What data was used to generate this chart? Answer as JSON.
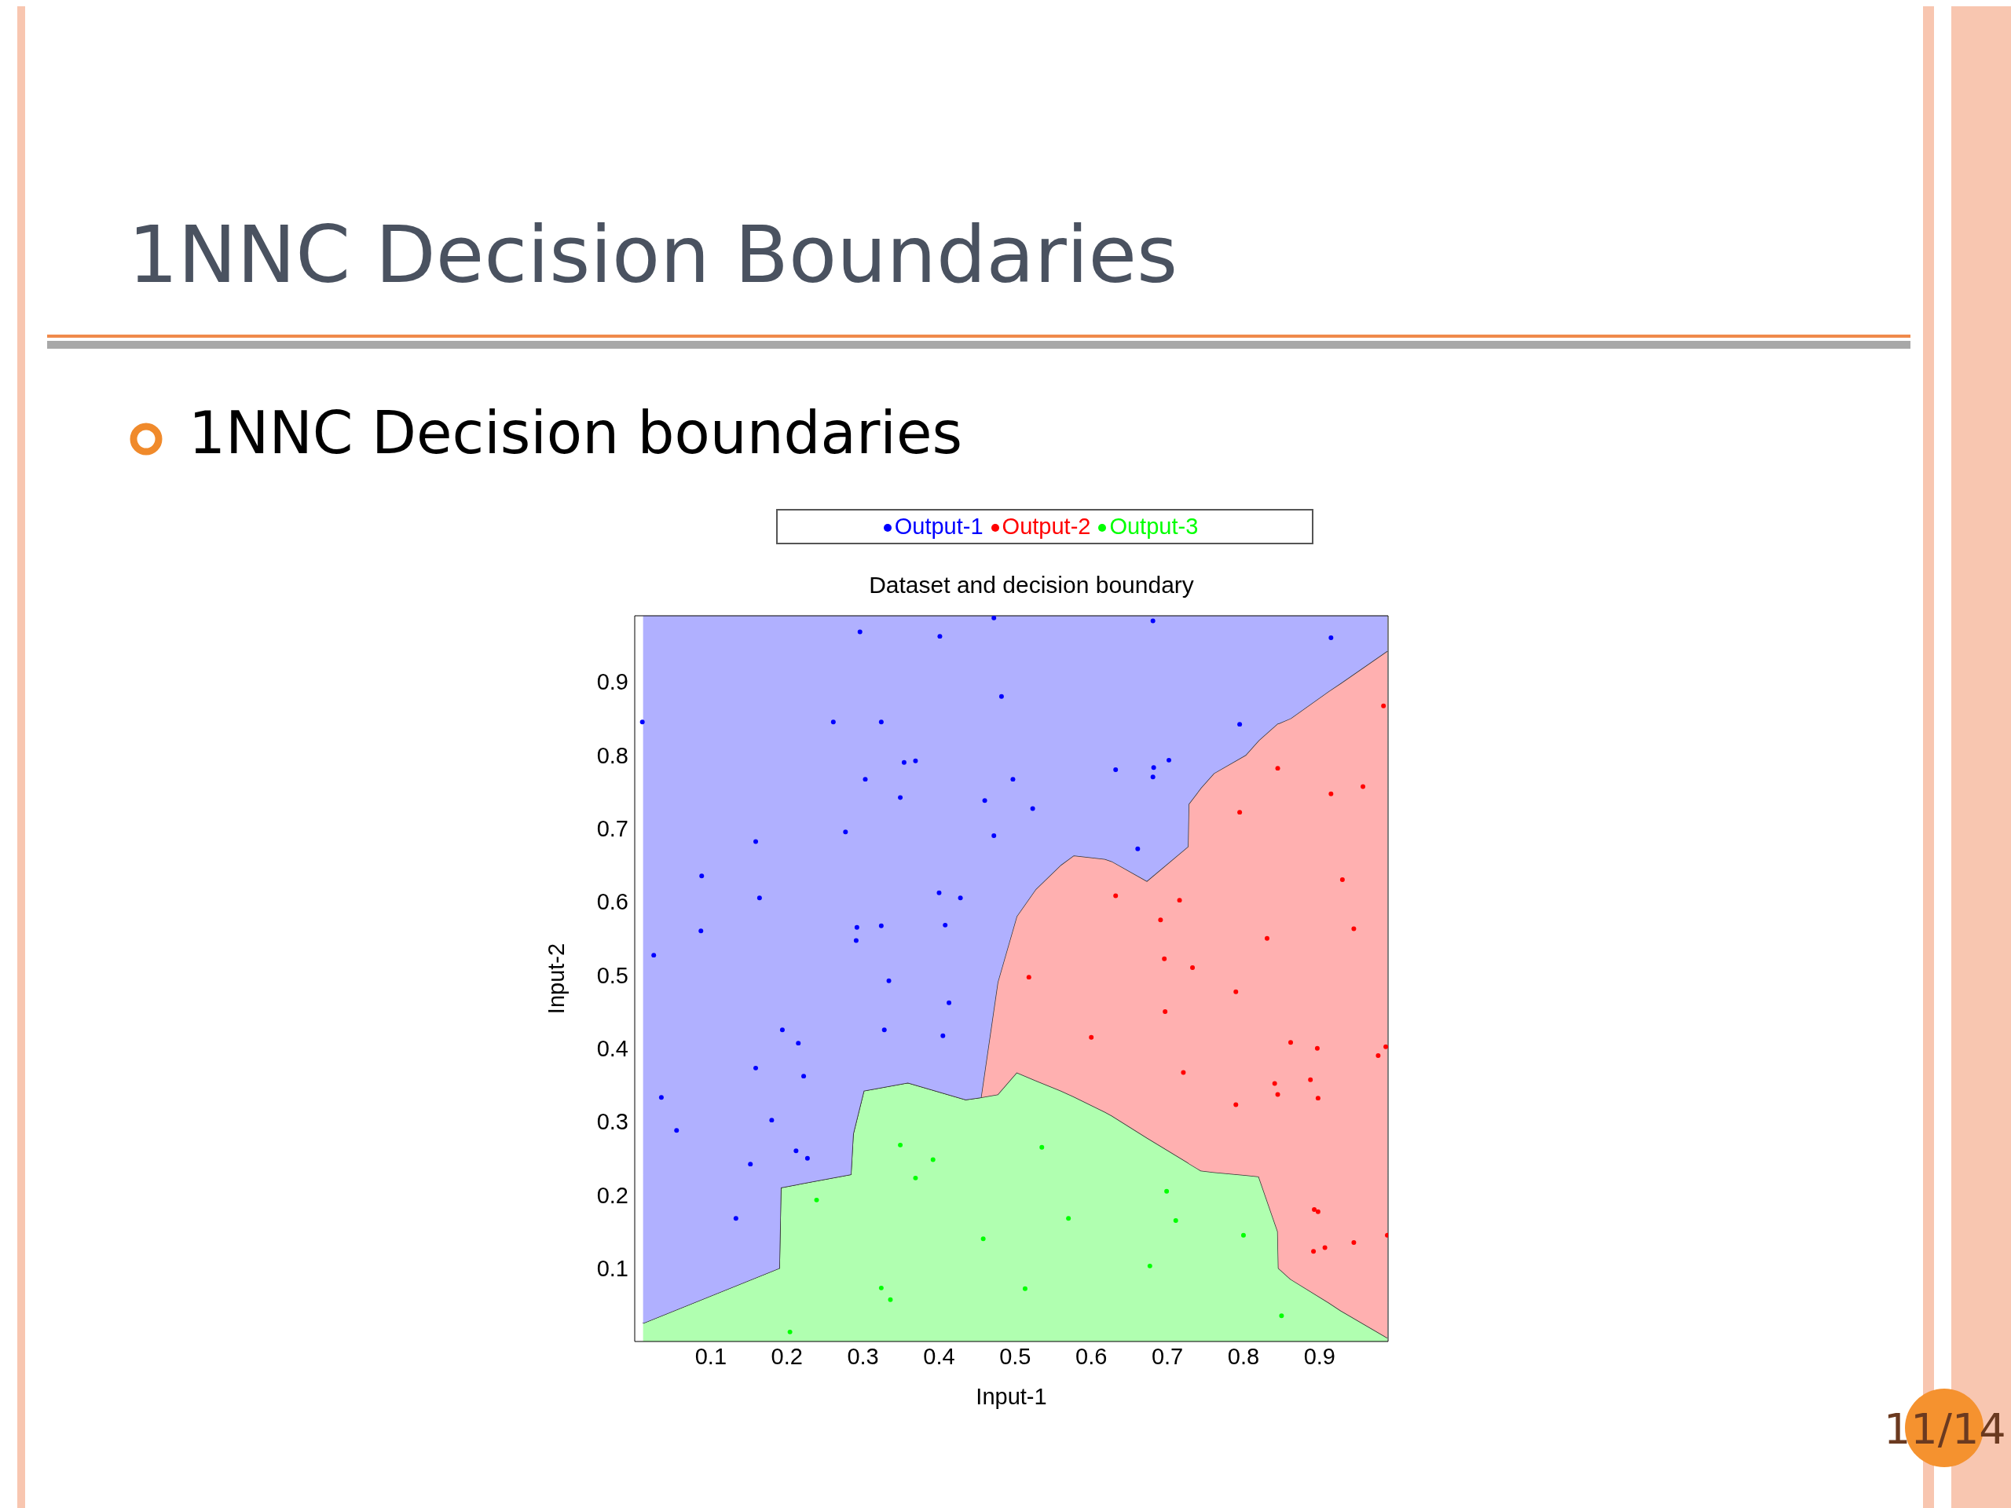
{
  "chart_data": {
    "type": "scatter",
    "title": "Dataset and decision boundary",
    "xlabel": "Input-1",
    "ylabel": "Input-2",
    "annotations": [
      "1NNC Decision Boundaries",
      "1NNC Decision boundaries",
      "11/14"
    ],
    "legend": "top",
    "marker": "circle",
    "stacked": true,
    "xlim": [
      0,
      0.99
    ],
    "ylim": [
      0,
      0.99
    ],
    "xticks": [
      0.1,
      0.2,
      0.3,
      0.4,
      0.5,
      0.6,
      0.7,
      0.8,
      0.9
    ],
    "yticks": [
      0.1,
      0.2,
      0.3,
      0.4,
      0.5,
      0.6,
      0.7,
      0.8,
      0.9
    ],
    "x": [
      0.011,
      0.19,
      0.192,
      0.284,
      0.287,
      0.301,
      0.359,
      0.435,
      0.455,
      0.477,
      0.502,
      0.527,
      0.56,
      0.577,
      0.618,
      0.627,
      0.673,
      0.727,
      0.728,
      0.744,
      0.761,
      0.803,
      0.82,
      0.845,
      0.846,
      0.862,
      0.912,
      0.928,
      0.989
    ],
    "series": [
      {
        "type": "area",
        "marker": "none",
        "color": "#b0ffb0",
        "values": [
          0.025,
          0.1,
          0.21,
          0.228,
          0.283,
          0.342,
          0.353,
          0.33,
          0.333,
          0.337,
          0.367,
          0.356,
          0.342,
          0.334,
          0.313,
          0.308,
          0.278,
          0.244,
          0.243,
          0.233,
          0.231,
          0.227,
          0.225,
          0.15,
          0.1,
          0.085,
          0.053,
          0.042,
          0.005
        ]
      },
      {
        "type": "area",
        "marker": "none",
        "color": "#ffb0b0",
        "values": [
          0,
          0,
          0,
          0,
          0,
          0,
          0,
          0,
          0,
          0.153,
          0.213,
          0.261,
          0.308,
          0.329,
          0.345,
          0.347,
          0.35,
          0.431,
          0.49,
          0.522,
          0.544,
          0.573,
          0.595,
          0.693,
          0.743,
          0.765,
          0.834,
          0.856,
          0.937
        ]
      },
      {
        "type": "area",
        "marker": "none",
        "color": "#b0b0ff",
        "values": [
          0.965,
          0.89,
          0.78,
          0.762,
          0.707,
          0.648,
          0.637,
          0.66,
          0.657,
          0.5,
          0.41,
          0.373,
          0.34,
          0.327,
          0.332,
          0.335,
          0.362,
          0.315,
          0.257,
          0.235,
          0.215,
          0.19,
          0.17,
          0.147,
          0.147,
          0.14,
          0.103,
          0.092,
          0.048
        ]
      },
      {
        "type": "scatter",
        "name": "Output-1",
        "color": "#0000ff",
        "x": [
          0.01,
          0.296,
          0.401,
          0.472,
          0.681,
          0.915,
          0.482,
          0.261,
          0.324,
          0.795,
          0.303,
          0.354,
          0.369,
          0.349,
          0.497,
          0.46,
          0.523,
          0.632,
          0.682,
          0.681,
          0.702,
          0.159,
          0.277,
          0.472,
          0.661,
          0.088,
          0.164,
          0.4,
          0.428,
          0.408,
          0.087,
          0.292,
          0.291,
          0.324,
          0.025,
          0.334,
          0.413,
          0.194,
          0.328,
          0.215,
          0.405,
          0.159,
          0.222,
          0.035,
          0.18,
          0.055,
          0.212,
          0.227,
          0.152,
          0.133
        ],
        "values": [
          0.845,
          0.968,
          0.962,
          0.987,
          0.983,
          0.96,
          0.88,
          0.845,
          0.845,
          0.842,
          0.767,
          0.79,
          0.792,
          0.742,
          0.767,
          0.738,
          0.727,
          0.78,
          0.783,
          0.77,
          0.793,
          0.682,
          0.695,
          0.69,
          0.672,
          0.635,
          0.605,
          0.612,
          0.605,
          0.568,
          0.56,
          0.565,
          0.547,
          0.567,
          0.527,
          0.492,
          0.462,
          0.425,
          0.425,
          0.407,
          0.417,
          0.373,
          0.362,
          0.333,
          0.302,
          0.288,
          0.26,
          0.25,
          0.242,
          0.168
        ]
      },
      {
        "type": "scatter",
        "name": "Output-2",
        "color": "#ff0000",
        "x": [
          0.984,
          0.845,
          0.915,
          0.957,
          0.795,
          0.93,
          0.632,
          0.716,
          0.691,
          0.945,
          0.831,
          0.696,
          0.733,
          0.518,
          0.79,
          0.697,
          0.6,
          0.862,
          0.897,
          0.987,
          0.977,
          0.721,
          0.841,
          0.888,
          0.845,
          0.898,
          0.79,
          0.893,
          0.898,
          0.945,
          0.989,
          0.907,
          0.892
        ],
        "values": [
          0.867,
          0.782,
          0.747,
          0.757,
          0.722,
          0.63,
          0.608,
          0.602,
          0.575,
          0.563,
          0.55,
          0.522,
          0.51,
          0.497,
          0.477,
          0.45,
          0.415,
          0.408,
          0.4,
          0.402,
          0.39,
          0.367,
          0.352,
          0.357,
          0.337,
          0.332,
          0.323,
          0.18,
          0.177,
          0.135,
          0.145,
          0.128,
          0.123
        ]
      },
      {
        "type": "scatter",
        "name": "Output-3",
        "color": "#00ff00",
        "x": [
          0.349,
          0.535,
          0.392,
          0.369,
          0.699,
          0.239,
          0.57,
          0.711,
          0.458,
          0.8,
          0.677,
          0.324,
          0.513,
          0.336,
          0.85,
          0.204
        ],
        "values": [
          0.268,
          0.265,
          0.248,
          0.223,
          0.205,
          0.193,
          0.168,
          0.165,
          0.14,
          0.145,
          0.103,
          0.073,
          0.072,
          0.057,
          0.035,
          0.013
        ]
      }
    ]
  }
}
